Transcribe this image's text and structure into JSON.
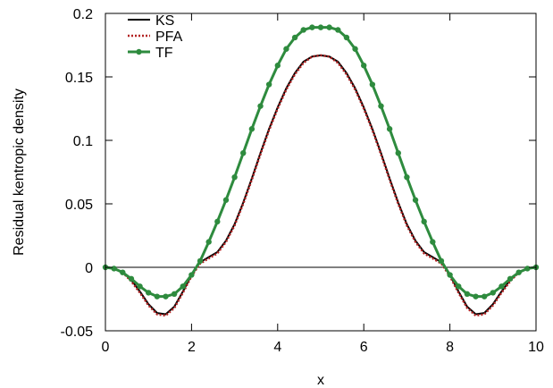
{
  "chart_data": {
    "type": "line",
    "title": "",
    "xlabel": "x",
    "ylabel": "Residual kentropic density",
    "xlim": [
      0,
      10
    ],
    "ylim": [
      -0.05,
      0.2
    ],
    "xticks": [
      0,
      2,
      4,
      6,
      8,
      10
    ],
    "xtick_labels": [
      "0",
      "2",
      "4",
      "6",
      "8",
      "10"
    ],
    "yticks": [
      -0.05,
      0,
      0.05,
      0.1,
      0.15,
      0.2
    ],
    "ytick_labels": [
      "-0.05",
      "0",
      "0.05",
      "0.1",
      "0.15",
      "0.2"
    ],
    "grid": false,
    "zero_line": true,
    "legend_position": "top-left",
    "colors": {
      "KS": "#000000",
      "PFA": "#b22222",
      "TF": "#2e8b3e",
      "zero_line": "#000000",
      "frame": "#000000"
    },
    "series": [
      {
        "name": "KS",
        "style": "solid",
        "markers": false,
        "x": [
          0,
          0.2,
          0.4,
          0.6,
          0.8,
          1.0,
          1.2,
          1.4,
          1.6,
          1.8,
          2.0,
          2.2,
          2.4,
          2.6,
          2.8,
          3.0,
          3.2,
          3.4,
          3.6,
          3.8,
          4.0,
          4.2,
          4.4,
          4.6,
          4.8,
          5.0,
          5.2,
          5.4,
          5.6,
          5.8,
          6.0,
          6.2,
          6.4,
          6.6,
          6.8,
          7.0,
          7.2,
          7.4,
          7.6,
          7.8,
          8.0,
          8.2,
          8.4,
          8.6,
          8.8,
          9.0,
          9.2,
          9.4,
          9.6,
          9.8,
          10.0
        ],
        "y": [
          0,
          -0.001,
          -0.004,
          -0.01,
          -0.019,
          -0.029,
          -0.036,
          -0.037,
          -0.031,
          -0.019,
          -0.006,
          0.004,
          0.008,
          0.012,
          0.021,
          0.034,
          0.051,
          0.07,
          0.09,
          0.109,
          0.126,
          0.141,
          0.153,
          0.162,
          0.166,
          0.167,
          0.166,
          0.162,
          0.153,
          0.141,
          0.126,
          0.109,
          0.09,
          0.07,
          0.051,
          0.034,
          0.021,
          0.012,
          0.008,
          0.004,
          -0.006,
          -0.019,
          -0.031,
          -0.037,
          -0.036,
          -0.029,
          -0.019,
          -0.01,
          -0.004,
          -0.001,
          0
        ]
      },
      {
        "name": "PFA",
        "style": "dotted",
        "markers": false,
        "x": [
          0,
          0.2,
          0.4,
          0.6,
          0.8,
          1.0,
          1.2,
          1.4,
          1.6,
          1.8,
          2.0,
          2.2,
          2.4,
          2.6,
          2.8,
          3.0,
          3.2,
          3.4,
          3.6,
          3.8,
          4.0,
          4.2,
          4.4,
          4.6,
          4.8,
          5.0,
          5.2,
          5.4,
          5.6,
          5.8,
          6.0,
          6.2,
          6.4,
          6.6,
          6.8,
          7.0,
          7.2,
          7.4,
          7.6,
          7.8,
          8.0,
          8.2,
          8.4,
          8.6,
          8.8,
          9.0,
          9.2,
          9.4,
          9.6,
          9.8,
          10.0
        ],
        "y": [
          0,
          -0.001,
          -0.004,
          -0.011,
          -0.02,
          -0.03,
          -0.037,
          -0.038,
          -0.032,
          -0.02,
          -0.007,
          0.003,
          0.007,
          0.011,
          0.02,
          0.033,
          0.05,
          0.069,
          0.089,
          0.108,
          0.125,
          0.14,
          0.152,
          0.161,
          0.166,
          0.167,
          0.166,
          0.161,
          0.152,
          0.14,
          0.125,
          0.108,
          0.089,
          0.069,
          0.05,
          0.033,
          0.02,
          0.011,
          0.007,
          0.003,
          -0.007,
          -0.02,
          -0.032,
          -0.038,
          -0.037,
          -0.03,
          -0.02,
          -0.011,
          -0.004,
          -0.001,
          0
        ]
      },
      {
        "name": "TF",
        "style": "solid",
        "markers": true,
        "x": [
          0,
          0.2,
          0.4,
          0.6,
          0.8,
          1.0,
          1.2,
          1.4,
          1.6,
          1.8,
          2.0,
          2.2,
          2.4,
          2.6,
          2.8,
          3.0,
          3.2,
          3.4,
          3.6,
          3.8,
          4.0,
          4.2,
          4.4,
          4.6,
          4.8,
          5.0,
          5.2,
          5.4,
          5.6,
          5.8,
          6.0,
          6.2,
          6.4,
          6.6,
          6.8,
          7.0,
          7.2,
          7.4,
          7.6,
          7.8,
          8.0,
          8.2,
          8.4,
          8.6,
          8.8,
          9.0,
          9.2,
          9.4,
          9.6,
          9.8,
          10.0
        ],
        "y": [
          0,
          -0.001,
          -0.004,
          -0.009,
          -0.015,
          -0.02,
          -0.023,
          -0.023,
          -0.021,
          -0.015,
          -0.006,
          0.005,
          0.02,
          0.036,
          0.053,
          0.071,
          0.09,
          0.109,
          0.127,
          0.144,
          0.159,
          0.172,
          0.181,
          0.187,
          0.189,
          0.189,
          0.189,
          0.187,
          0.181,
          0.172,
          0.159,
          0.144,
          0.127,
          0.109,
          0.09,
          0.071,
          0.053,
          0.036,
          0.02,
          0.005,
          -0.006,
          -0.015,
          -0.021,
          -0.023,
          -0.023,
          -0.02,
          -0.015,
          -0.009,
          -0.004,
          -0.001,
          0
        ]
      }
    ]
  }
}
